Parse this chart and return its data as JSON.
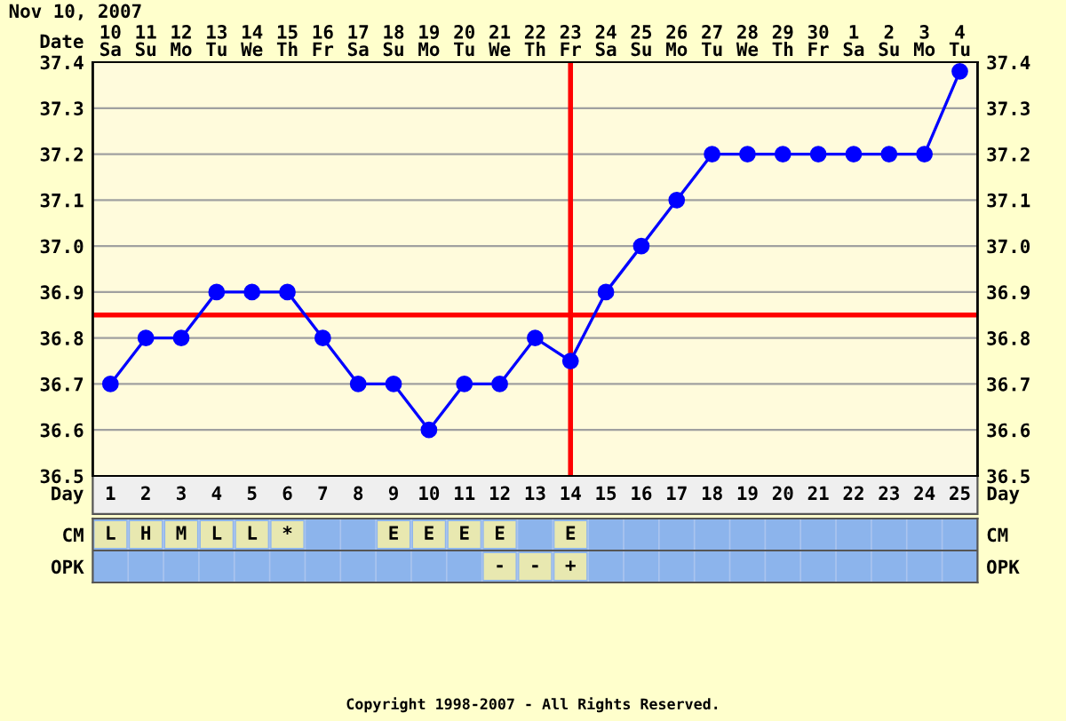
{
  "chart_data": [
    {
      "type": "line",
      "title": "Nov 10, 2007",
      "xlabel": "Day",
      "x2label": "Date",
      "categories": [
        "1",
        "2",
        "3",
        "4",
        "5",
        "6",
        "7",
        "8",
        "9",
        "10",
        "11",
        "12",
        "13",
        "14",
        "15",
        "16",
        "17",
        "18",
        "19",
        "20",
        "21",
        "22",
        "23",
        "24",
        "25"
      ],
      "series": [
        {
          "color": "#0000ff",
          "values": [
            36.7,
            36.8,
            36.8,
            36.9,
            36.9,
            36.9,
            36.8,
            36.7,
            36.7,
            36.6,
            36.7,
            36.7,
            36.8,
            36.75,
            36.9,
            37.0,
            37.1,
            37.2,
            37.2,
            37.2,
            37.2,
            37.2,
            37.2,
            37.2,
            37.38
          ]
        }
      ],
      "marker": "circle",
      "line_style": "solid",
      "grid": true,
      "ylim": [
        36.5,
        37.4
      ],
      "yticks": [
        36.5,
        36.6,
        36.7,
        36.8,
        36.9,
        {
          "value": 37.0,
          "label": "37.0"
        },
        37.1,
        37.2,
        37.3,
        37.4
      ],
      "y2lim": [
        36.5,
        37.4
      ],
      "y2ticks": [
        36.5,
        36.6,
        36.7,
        36.8,
        36.9,
        {
          "value": 37.0,
          "label": "37.0"
        },
        37.1,
        37.2,
        37.3,
        37.4
      ],
      "x2lim": [
        "2007-11-09T12:00",
        "2007-12-04T12:00"
      ],
      "x2ticks": [
        {
          "value": "2007-11-10",
          "label": "10\nSa"
        },
        {
          "value": "2007-11-11",
          "label": "11\nSu"
        },
        {
          "value": "2007-11-12",
          "label": "12\nMo"
        },
        {
          "value": "2007-11-13",
          "label": "13\nTu"
        },
        {
          "value": "2007-11-14",
          "label": "14\nWe"
        },
        {
          "value": "2007-11-15",
          "label": "15\nTh"
        },
        {
          "value": "2007-11-16",
          "label": "16\nFr"
        },
        {
          "value": "2007-11-17",
          "label": "17\nSa"
        },
        {
          "value": "2007-11-18",
          "label": "18\nSu"
        },
        {
          "value": "2007-11-19",
          "label": "19\nMo"
        },
        {
          "value": "2007-11-20",
          "label": "20\nTu"
        },
        {
          "value": "2007-11-21",
          "label": "21\nWe"
        },
        {
          "value": "2007-11-22",
          "label": "22\nTh"
        },
        {
          "value": "2007-11-23",
          "label": "23\nFr"
        },
        {
          "value": "2007-11-24",
          "label": "24\nSa"
        },
        {
          "value": "2007-11-25",
          "label": "25\nSu"
        },
        {
          "value": "2007-11-26",
          "label": "26\nMo"
        },
        {
          "value": "2007-11-27",
          "label": "27\nTu"
        },
        {
          "value": "2007-11-28",
          "label": "28\nWe"
        },
        {
          "value": "2007-11-29",
          "label": "29\nTh"
        },
        {
          "value": "2007-11-30",
          "label": "30\nFr"
        },
        {
          "value": "2007-12-01",
          "label": "1\nSa"
        },
        {
          "value": "2007-12-02",
          "label": "2\nSu"
        },
        {
          "value": "2007-12-03",
          "label": "3\nMo"
        },
        {
          "value": "2007-12-04",
          "label": "4\nTu"
        }
      ],
      "ref_lines": [
        {
          "axis": "y",
          "value": 36.85,
          "color": "#ff0000"
        },
        {
          "axis": "x",
          "value": "14",
          "color": "#ff0000"
        }
      ],
      "annotations": [
        "Copyright 1998-2007 - All Rights Reserved."
      ]
    },
    {
      "type": "other",
      "categories": [
        null,
        null,
        null,
        null,
        null,
        null,
        null,
        null,
        null,
        null,
        null,
        null,
        null,
        null,
        null,
        null,
        null,
        null,
        null,
        null,
        null,
        null,
        null,
        null,
        null
      ],
      "y_categories": [
        "CM",
        "OPK"
      ],
      "cell_labels": [
        [
          "L",
          "H",
          "M",
          "L",
          "L",
          "*",
          null,
          null,
          "E",
          "E",
          "E",
          "E",
          null,
          "E",
          null,
          null,
          null,
          null,
          null,
          null,
          null,
          null,
          null,
          null,
          null
        ],
        [
          null,
          null,
          null,
          null,
          null,
          null,
          null,
          null,
          null,
          null,
          null,
          "-",
          "-",
          "+",
          null,
          null,
          null,
          null,
          null,
          null,
          null,
          null,
          null,
          null,
          null
        ]
      ]
    }
  ]
}
